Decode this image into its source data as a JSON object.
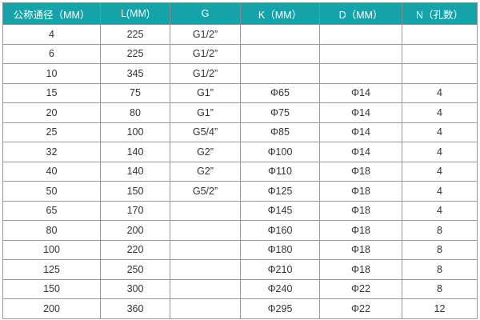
{
  "header_color": "#15a3a9",
  "headers": [
    "公称通径（MM）",
    "L(MM)",
    "G",
    "K（MM）",
    "D（MM）",
    "N（孔数）"
  ],
  "rows": [
    [
      "4",
      "225",
      "G1/2”",
      "",
      "",
      ""
    ],
    [
      "6",
      "225",
      "G1/2”",
      "",
      "",
      ""
    ],
    [
      "10",
      "345",
      "G1/2”",
      "",
      "",
      ""
    ],
    [
      "15",
      "75",
      "G1”",
      "Φ65",
      "Φ14",
      "4"
    ],
    [
      "20",
      "80",
      "G1”",
      "Φ75",
      "Φ14",
      "4"
    ],
    [
      "25",
      "100",
      "G5/4”",
      "Φ85",
      "Φ14",
      "4"
    ],
    [
      "32",
      "140",
      "G2”",
      "Φ100",
      "Φ14",
      "4"
    ],
    [
      "40",
      "140",
      "G2”",
      "Φ110",
      "Φ18",
      "4"
    ],
    [
      "50",
      "150",
      "G5/2”",
      "Φ125",
      "Φ18",
      "4"
    ],
    [
      "65",
      "170",
      "",
      "Φ145",
      "Φ18",
      "4"
    ],
    [
      "80",
      "200",
      "",
      "Φ160",
      "Φ18",
      "8"
    ],
    [
      "100",
      "220",
      "",
      "Φ180",
      "Φ18",
      "8"
    ],
    [
      "125",
      "250",
      "",
      "Φ210",
      "Φ18",
      "8"
    ],
    [
      "150",
      "300",
      "",
      "Φ240",
      "Φ22",
      "8"
    ],
    [
      "200",
      "360",
      "",
      "Φ295",
      "Φ22",
      "12"
    ]
  ]
}
